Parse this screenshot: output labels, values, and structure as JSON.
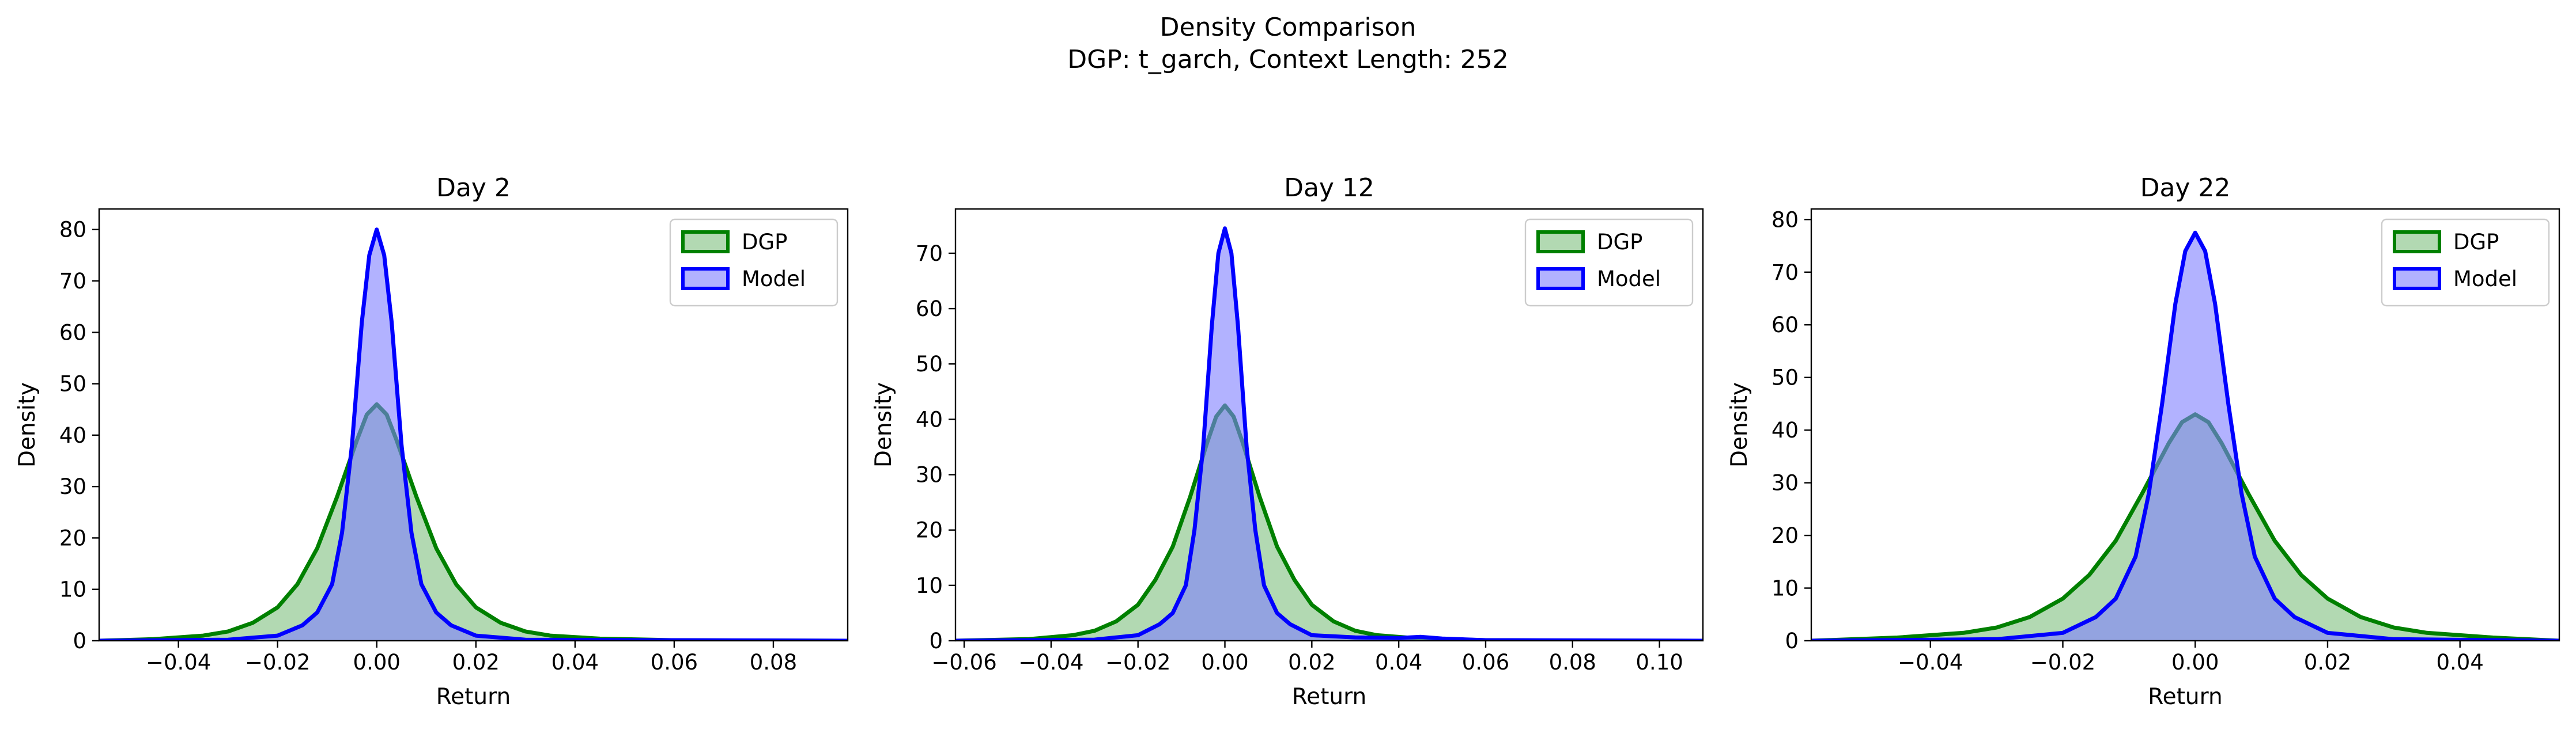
{
  "figure": {
    "title": "Density Comparison",
    "subtitle": "DGP: t_garch, Context Length: 252"
  },
  "colors": {
    "dgp_line": "#008000",
    "dgp_fill": "#7fc07f",
    "model_line": "#0000ff",
    "model_fill": "#7f7fff"
  },
  "chart_data": [
    {
      "type": "area",
      "title": "Day 2",
      "xlabel": "Return",
      "ylabel": "Density",
      "xlim": [
        -0.056,
        0.095
      ],
      "ylim": [
        0,
        84
      ],
      "xticks": [
        -0.04,
        -0.02,
        0.0,
        0.02,
        0.04,
        0.06,
        0.08
      ],
      "xtick_labels": [
        "−0.04",
        "−0.02",
        "0.00",
        "0.02",
        "0.04",
        "0.06",
        "0.08"
      ],
      "yticks": [
        0,
        10,
        20,
        30,
        40,
        50,
        60,
        70,
        80
      ],
      "grid": false,
      "legend": "top-right",
      "series": [
        {
          "name": "DGP",
          "x": [
            -0.056,
            -0.045,
            -0.035,
            -0.03,
            -0.025,
            -0.02,
            -0.016,
            -0.012,
            -0.008,
            -0.004,
            -0.002,
            0,
            0.002,
            0.004,
            0.008,
            0.012,
            0.016,
            0.02,
            0.025,
            0.03,
            0.035,
            0.045,
            0.06,
            0.08,
            0.095
          ],
          "y": [
            0,
            0.3,
            1,
            1.8,
            3.5,
            6.5,
            11,
            18,
            28,
            39,
            44,
            46,
            44,
            39,
            28,
            18,
            11,
            6.5,
            3.5,
            1.8,
            1,
            0.4,
            0.1,
            0.02,
            0
          ]
        },
        {
          "name": "Model",
          "x": [
            -0.056,
            -0.03,
            -0.02,
            -0.015,
            -0.012,
            -0.009,
            -0.007,
            -0.005,
            -0.003,
            -0.0015,
            0,
            0.0015,
            0.003,
            0.005,
            0.007,
            0.009,
            0.012,
            0.015,
            0.02,
            0.03,
            0.095
          ],
          "y": [
            0,
            0.2,
            1,
            3,
            5.5,
            11,
            21,
            38,
            62,
            75,
            80,
            75,
            62,
            38,
            21,
            11,
            5.5,
            3,
            1,
            0.2,
            0
          ]
        }
      ]
    },
    {
      "type": "area",
      "title": "Day 12",
      "xlabel": "Return",
      "ylabel": "Density",
      "xlim": [
        -0.062,
        0.11
      ],
      "ylim": [
        0,
        78
      ],
      "xticks": [
        -0.06,
        -0.04,
        -0.02,
        0.0,
        0.02,
        0.04,
        0.06,
        0.08,
        0.1
      ],
      "xtick_labels": [
        "−0.06",
        "−0.04",
        "−0.02",
        "0.00",
        "0.02",
        "0.04",
        "0.06",
        "0.08",
        "0.10"
      ],
      "yticks": [
        0,
        10,
        20,
        30,
        40,
        50,
        60,
        70
      ],
      "grid": false,
      "legend": "top-right",
      "series": [
        {
          "name": "DGP",
          "x": [
            -0.062,
            -0.045,
            -0.035,
            -0.03,
            -0.025,
            -0.02,
            -0.016,
            -0.012,
            -0.008,
            -0.004,
            -0.002,
            0,
            0.002,
            0.004,
            0.008,
            0.012,
            0.016,
            0.02,
            0.025,
            0.03,
            0.035,
            0.045,
            0.06,
            0.08,
            0.11
          ],
          "y": [
            0,
            0.3,
            1,
            1.8,
            3.5,
            6.5,
            11,
            17,
            26,
            36,
            40.5,
            42.5,
            40.5,
            36,
            26,
            17,
            11,
            6.5,
            3.5,
            1.8,
            1,
            0.4,
            0.1,
            0.02,
            0
          ]
        },
        {
          "name": "Model",
          "x": [
            -0.062,
            -0.03,
            -0.02,
            -0.015,
            -0.012,
            -0.009,
            -0.007,
            -0.005,
            -0.003,
            -0.0015,
            0,
            0.0015,
            0.003,
            0.005,
            0.007,
            0.009,
            0.012,
            0.015,
            0.02,
            0.03,
            0.04,
            0.045,
            0.05,
            0.06,
            0.11
          ],
          "y": [
            0,
            0.2,
            1,
            3,
            5,
            10,
            20,
            35,
            57,
            70,
            74.5,
            70,
            57,
            35,
            20,
            10,
            5,
            3,
            1,
            0.6,
            0.5,
            0.7,
            0.4,
            0.1,
            0
          ]
        }
      ]
    },
    {
      "type": "area",
      "title": "Day 22",
      "xlabel": "Return",
      "ylabel": "Density",
      "xlim": [
        -0.058,
        0.055
      ],
      "ylim": [
        0,
        82
      ],
      "xticks": [
        -0.04,
        -0.02,
        0.0,
        0.02,
        0.04
      ],
      "xtick_labels": [
        "−0.04",
        "−0.02",
        "0.00",
        "0.02",
        "0.04"
      ],
      "yticks": [
        0,
        10,
        20,
        30,
        40,
        50,
        60,
        70,
        80
      ],
      "grid": false,
      "legend": "top-right",
      "series": [
        {
          "name": "DGP",
          "x": [
            -0.058,
            -0.045,
            -0.035,
            -0.03,
            -0.025,
            -0.02,
            -0.016,
            -0.012,
            -0.008,
            -0.004,
            -0.002,
            0,
            0.002,
            0.004,
            0.008,
            0.012,
            0.016,
            0.02,
            0.025,
            0.03,
            0.035,
            0.045,
            0.055
          ],
          "y": [
            0,
            0.6,
            1.5,
            2.5,
            4.5,
            8,
            12.5,
            19,
            28,
            37.5,
            41.5,
            43,
            41.5,
            37.5,
            28,
            19,
            12.5,
            8,
            4.5,
            2.5,
            1.5,
            0.6,
            0
          ]
        },
        {
          "name": "Model",
          "x": [
            -0.058,
            -0.03,
            -0.02,
            -0.015,
            -0.012,
            -0.009,
            -0.007,
            -0.005,
            -0.003,
            -0.0015,
            0,
            0.0015,
            0.003,
            0.005,
            0.007,
            0.009,
            0.012,
            0.015,
            0.02,
            0.03,
            0.055
          ],
          "y": [
            0,
            0.3,
            1.5,
            4.5,
            8,
            16,
            28,
            45,
            64,
            74,
            77.5,
            74,
            64,
            45,
            28,
            16,
            8,
            4.5,
            1.5,
            0.3,
            0
          ]
        }
      ]
    }
  ]
}
